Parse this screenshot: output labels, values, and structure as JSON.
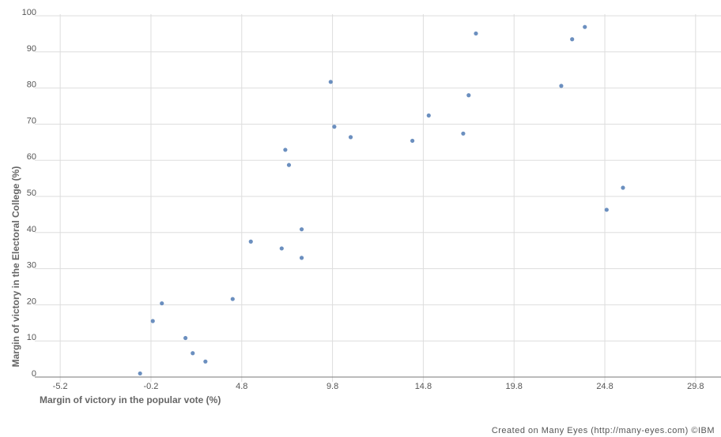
{
  "chart_data": {
    "type": "scatter",
    "title": "",
    "xlabel": "Margin of victory in the popular vote (%)",
    "ylabel": "Margin of victory in the Electoral College (%)",
    "xlim": [
      -6.6,
      31.2
    ],
    "ylim": [
      0,
      100
    ],
    "x_ticks": [
      -5.2,
      -0.2,
      4.8,
      9.8,
      14.8,
      19.8,
      24.8,
      29.8
    ],
    "x_tick_labels": [
      "-5.2",
      "-0.2",
      "4.8",
      "9.8",
      "14.8",
      "19.8",
      "24.8",
      "29.8"
    ],
    "y_ticks": [
      0,
      10,
      20,
      30,
      40,
      50,
      60,
      70,
      80,
      90,
      100
    ],
    "y_tick_labels": [
      "0",
      "10",
      "20",
      "30",
      "40",
      "50",
      "60",
      "70",
      "80",
      "90",
      "100"
    ],
    "grid": true,
    "point_color": "#6b8fbf",
    "points": [
      {
        "x": -0.8,
        "y": 1.0
      },
      {
        "x": -0.1,
        "y": 15.5
      },
      {
        "x": 0.4,
        "y": 20.4
      },
      {
        "x": 1.7,
        "y": 10.8
      },
      {
        "x": 2.1,
        "y": 6.6
      },
      {
        "x": 2.8,
        "y": 4.3
      },
      {
        "x": 4.3,
        "y": 21.6
      },
      {
        "x": 5.3,
        "y": 37.5
      },
      {
        "x": 7.0,
        "y": 35.6
      },
      {
        "x": 7.2,
        "y": 62.9
      },
      {
        "x": 7.4,
        "y": 58.7
      },
      {
        "x": 8.1,
        "y": 40.9
      },
      {
        "x": 8.1,
        "y": 33.0
      },
      {
        "x": 9.7,
        "y": 81.7
      },
      {
        "x": 9.9,
        "y": 69.3
      },
      {
        "x": 10.8,
        "y": 66.4
      },
      {
        "x": 14.2,
        "y": 65.4
      },
      {
        "x": 15.1,
        "y": 72.4
      },
      {
        "x": 17.0,
        "y": 67.4
      },
      {
        "x": 17.3,
        "y": 78.0
      },
      {
        "x": 17.7,
        "y": 95.1
      },
      {
        "x": 22.4,
        "y": 80.6
      },
      {
        "x": 23.0,
        "y": 93.5
      },
      {
        "x": 23.7,
        "y": 96.9
      },
      {
        "x": 24.9,
        "y": 46.3
      },
      {
        "x": 25.8,
        "y": 52.4
      }
    ]
  },
  "footer": {
    "credit": "Created on Many Eyes (http://many-eyes.com)",
    "ibm": "IBM"
  }
}
